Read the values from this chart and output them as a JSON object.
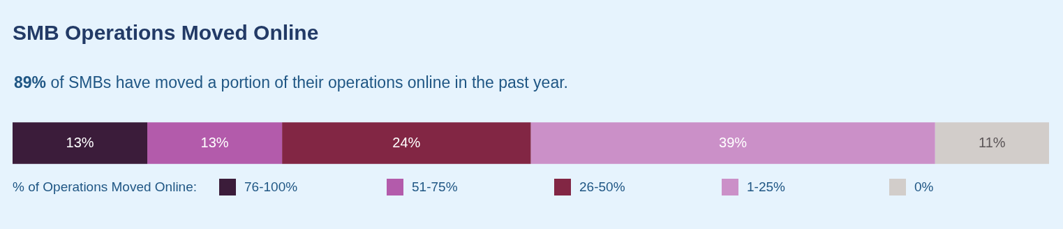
{
  "chart_data": {
    "type": "bar",
    "orientation": "horizontal",
    "stacked": true,
    "title": "SMB Operations Moved Online",
    "subtitle": "89% of SMBs have moved a portion of their operations online in the past year.",
    "legend_title": "% of Operations Moved Online:",
    "categories": [
      null
    ],
    "series": [
      {
        "name": "76-100%",
        "color": "#3b1c3a",
        "values": [
          13
        ],
        "value_labels": [
          "13%"
        ]
      },
      {
        "name": "51-75%",
        "color": "#b35bab",
        "values": [
          13
        ],
        "value_labels": [
          "13%"
        ]
      },
      {
        "name": "26-50%",
        "color": "#822644",
        "values": [
          24
        ],
        "value_labels": [
          "24%"
        ]
      },
      {
        "name": "1-25%",
        "color": "#cb90c8",
        "values": [
          39
        ],
        "value_labels": [
          "39%"
        ]
      },
      {
        "name": "0%",
        "color": "#d2cdca",
        "values": [
          11
        ],
        "value_labels": [
          "11%"
        ]
      }
    ],
    "legend": "bottom",
    "tick_labels": false
  }
}
